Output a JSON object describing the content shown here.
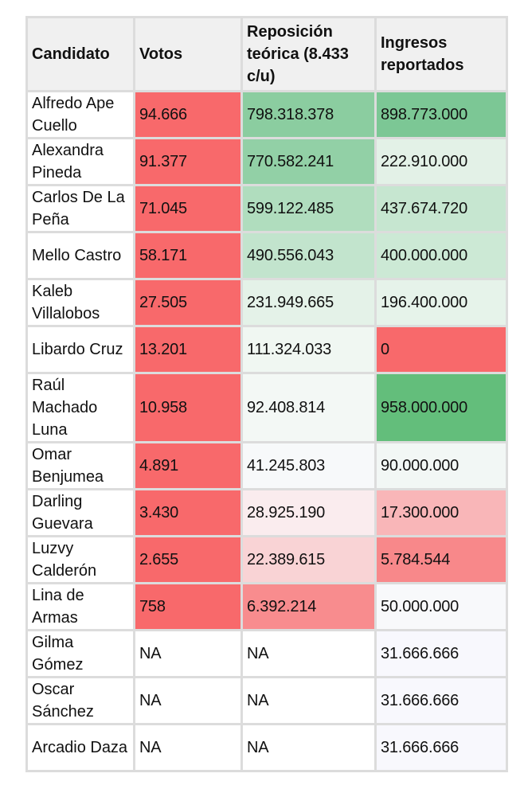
{
  "table": {
    "headers": [
      "Candidato",
      "Votos",
      "Reposición teórica (8.433 c/u)",
      "Ingresos reportados"
    ],
    "rows": [
      {
        "candidato": "Alfredo Ape Cuello",
        "votos": "94.666",
        "reposicion": "798.318.378",
        "ingresos": "898.773.000",
        "colors": {
          "votos": "#f8696b",
          "reposicion": "#8bcda0",
          "ingresos": "#7cc795"
        }
      },
      {
        "candidato": "Alexandra Pineda",
        "votos": "91.377",
        "reposicion": "770.582.241",
        "ingresos": "222.910.000",
        "colors": {
          "votos": "#f8696b",
          "reposicion": "#92d0a6",
          "ingresos": "#e3f1e7"
        }
      },
      {
        "candidato": "Carlos De La Peña",
        "votos": "71.045",
        "reposicion": "599.122.485",
        "ingresos": "437.674.720",
        "colors": {
          "votos": "#f8696b",
          "reposicion": "#b0ddbe",
          "ingresos": "#c6e6d0"
        }
      },
      {
        "candidato": "Mello Castro",
        "votos": "58.171",
        "reposicion": "490.556.043",
        "ingresos": "400.000.000",
        "colors": {
          "votos": "#f8696b",
          "reposicion": "#c2e4cd",
          "ingresos": "#cce9d5"
        }
      },
      {
        "candidato": "Kaleb Villalobos",
        "votos": "27.505",
        "reposicion": "231.949.665",
        "ingresos": "196.400.000",
        "colors": {
          "votos": "#f8696b",
          "reposicion": "#e4f2e8",
          "ingresos": "#e6f3ea"
        }
      },
      {
        "candidato": "Libardo Cruz",
        "votos": "13.201",
        "reposicion": "111.324.033",
        "ingresos": "0",
        "colors": {
          "votos": "#f8696b",
          "reposicion": "#f0f7f2",
          "ingresos": "#f8696b"
        }
      },
      {
        "candidato": "Raúl Machado Luna",
        "votos": "10.958",
        "reposicion": "92.408.814",
        "ingresos": "958.000.000",
        "colors": {
          "votos": "#f8696b",
          "reposicion": "#f3f8f5",
          "ingresos": "#63be7b"
        }
      },
      {
        "candidato": "Omar Benjumea",
        "votos": "4.891",
        "reposicion": "41.245.803",
        "ingresos": "90.000.000",
        "colors": {
          "votos": "#f8696b",
          "reposicion": "#f7f9fa",
          "ingresos": "#f2f7f5"
        }
      },
      {
        "candidato": "Darling Guevara",
        "votos": "3.430",
        "reposicion": "28.925.190",
        "ingresos": "17.300.000",
        "colors": {
          "votos": "#f8696b",
          "reposicion": "#faecee",
          "ingresos": "#f9b6b8"
        }
      },
      {
        "candidato": "Luzvy Calderón",
        "votos": "2.655",
        "reposicion": "22.389.615",
        "ingresos": "5.784.544",
        "colors": {
          "votos": "#f8696b",
          "reposicion": "#f9d3d5",
          "ingresos": "#f8888a"
        }
      },
      {
        "candidato": "Lina de Armas",
        "votos": "758",
        "reposicion": "6.392.214",
        "ingresos": "50.000.000",
        "colors": {
          "votos": "#f8696b",
          "reposicion": "#f88c8e",
          "ingresos": "#f8f9fb"
        }
      },
      {
        "candidato": "Gilma Gómez",
        "votos": "NA",
        "reposicion": "NA",
        "ingresos": "31.666.666",
        "colors": {
          "votos": "#ffffff",
          "reposicion": "#ffffff",
          "ingresos": "#f8f8fd"
        }
      },
      {
        "candidato": "Oscar Sánchez",
        "votos": "NA",
        "reposicion": "NA",
        "ingresos": "31.666.666",
        "colors": {
          "votos": "#ffffff",
          "reposicion": "#ffffff",
          "ingresos": "#f8f8fd"
        }
      },
      {
        "candidato": "Arcadio Daza",
        "votos": "NA",
        "reposicion": "NA",
        "ingresos": "31.666.666",
        "colors": {
          "votos": "#ffffff",
          "reposicion": "#ffffff",
          "ingresos": "#f8f8fd"
        }
      }
    ]
  }
}
